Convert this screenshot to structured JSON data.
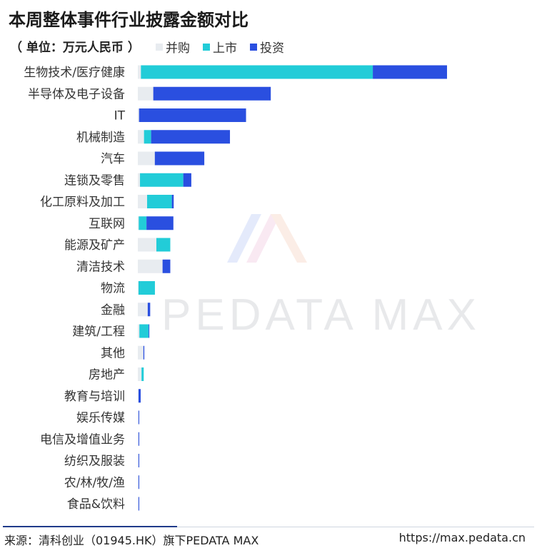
{
  "header": {
    "title": "本周整体事件行业披露金额对比",
    "unit": "（ 单位：万元人民币 ）"
  },
  "watermark": {
    "text": "PEDATA MAX"
  },
  "footer": {
    "source": "来源：清科创业（01945.HK）旗下PEDATA MAX",
    "url": "https://max.pedata.cn"
  },
  "chart_data": {
    "type": "bar",
    "orientation": "horizontal",
    "stacked": true,
    "grid": false,
    "legend_position": "top",
    "categories": [
      "生物技术/医疗健康",
      "半导体及电子设备",
      "IT",
      "机械制造",
      "汽车",
      "连锁及零售",
      "化工原料及加工",
      "互联网",
      "能源及矿产",
      "清洁技术",
      "物流",
      "金融",
      "建筑/工程",
      "其他",
      "房地产",
      "教育与培训",
      "娱乐传媒",
      "电信及增值业务",
      "纺织及服装",
      "农/林/牧/渔",
      "食品&饮料"
    ],
    "series": [
      {
        "name": "并购",
        "color": "#e8ecf0",
        "values": [
          1.0,
          5.0,
          0.4,
          2.0,
          5.5,
          0.7,
          3.0,
          0.3,
          6.0,
          8.0,
          0.2,
          3.2,
          0.5,
          1.8,
          1.2,
          0.2,
          0.1,
          0.1,
          0.1,
          0.1,
          0.1
        ]
      },
      {
        "name": "上市",
        "color": "#22ccd8",
        "values": [
          75.0,
          0.0,
          0.0,
          2.3,
          0.0,
          14.0,
          8.0,
          2.5,
          4.5,
          0.0,
          5.3,
          0.0,
          3.0,
          0.0,
          0.7,
          0.0,
          0.0,
          0.0,
          0.0,
          0.0,
          0.0
        ]
      },
      {
        "name": "投资",
        "color": "#2a4fe0",
        "values": [
          24.0,
          38.0,
          34.6,
          25.5,
          16.0,
          2.6,
          0.6,
          8.7,
          0.0,
          2.5,
          0.0,
          0.8,
          0.2,
          0.3,
          0.0,
          0.7,
          0.2,
          0.2,
          0.2,
          0.2,
          0.2
        ]
      }
    ]
  }
}
